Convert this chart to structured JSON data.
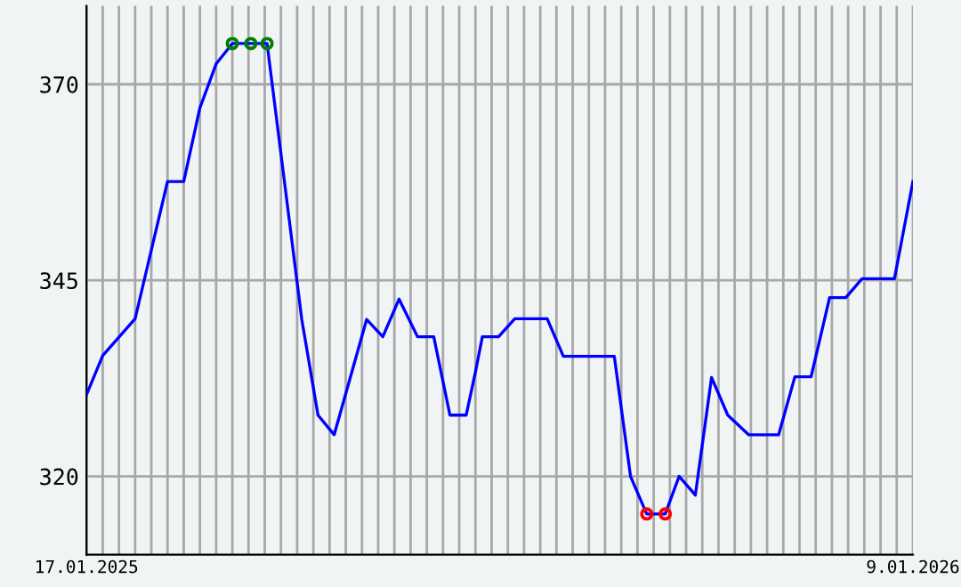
{
  "chart_data": {
    "type": "line",
    "x": [
      "2025-01-17",
      "2025-01-24",
      "2025-02-07",
      "2025-02-21",
      "2025-02-28",
      "2025-03-07",
      "2025-03-14",
      "2025-03-21",
      "2025-04-05",
      "2025-04-20",
      "2025-04-27",
      "2025-05-04",
      "2025-05-18",
      "2025-05-25",
      "2025-06-01",
      "2025-06-09",
      "2025-06-16",
      "2025-06-23",
      "2025-06-30",
      "2025-07-04",
      "2025-07-07",
      "2025-07-14",
      "2025-07-21",
      "2025-08-04",
      "2025-08-11",
      "2025-09-02",
      "2025-09-09",
      "2025-09-16",
      "2025-09-24",
      "2025-09-30",
      "2025-10-07",
      "2025-10-14",
      "2025-10-21",
      "2025-10-30",
      "2025-11-12",
      "2025-11-19",
      "2025-11-26",
      "2025-12-04",
      "2025-12-11",
      "2025-12-18",
      "2026-01-01",
      "2026-01-09"
    ],
    "series": [
      {
        "color": "#0000ff",
        "marker": "none",
        "values": [
          330.4,
          335.4,
          340.1,
          357.6,
          357.6,
          367.0,
          372.6,
          375.2,
          375.2,
          340.0,
          327.8,
          325.3,
          340.0,
          337.8,
          342.6,
          337.8,
          337.8,
          327.8,
          327.8,
          333.3,
          337.8,
          337.8,
          340.1,
          340.1,
          335.3,
          335.3,
          320.0,
          315.2,
          315.2,
          320.0,
          317.6,
          332.6,
          327.8,
          325.3,
          325.3,
          332.7,
          332.7,
          342.8,
          342.8,
          345.2,
          345.2,
          357.6
        ]
      },
      {
        "type": "scatter",
        "color": "#008000",
        "marker": "circle",
        "x": [
          "2025-03-21",
          "2025-03-29",
          "2025-04-05"
        ],
        "values": [
          375.2,
          375.2,
          375.2
        ]
      },
      {
        "type": "scatter",
        "color": "#ff0000",
        "marker": "circle",
        "x": [
          "2025-09-16",
          "2025-09-24"
        ],
        "values": [
          315.2,
          315.2
        ]
      }
    ],
    "xlim": [
      "2025-01-17",
      "2026-01-09"
    ],
    "xticks": [
      {
        "value": "2025-01-17",
        "label": "17.01.2025"
      },
      {
        "value": "2025-01-24",
        "label": null
      },
      {
        "value": "2025-01-31",
        "label": null
      },
      {
        "value": "2025-02-07",
        "label": null
      },
      {
        "value": "2025-02-14",
        "label": null
      },
      {
        "value": "2025-02-21",
        "label": null
      },
      {
        "value": "2025-02-28",
        "label": null
      },
      {
        "value": "2025-03-07",
        "label": null
      },
      {
        "value": "2025-03-14",
        "label": null
      },
      {
        "value": "2025-03-21",
        "label": null
      },
      {
        "value": "2025-03-28",
        "label": null
      },
      {
        "value": "2025-04-04",
        "label": null
      },
      {
        "value": "2025-04-11",
        "label": null
      },
      {
        "value": "2025-04-18",
        "label": null
      },
      {
        "value": "2025-04-25",
        "label": null
      },
      {
        "value": "2025-05-02",
        "label": null
      },
      {
        "value": "2025-05-09",
        "label": null
      },
      {
        "value": "2025-05-16",
        "label": null
      },
      {
        "value": "2025-05-23",
        "label": null
      },
      {
        "value": "2025-05-30",
        "label": null
      },
      {
        "value": "2025-06-06",
        "label": null
      },
      {
        "value": "2025-06-13",
        "label": null
      },
      {
        "value": "2025-06-20",
        "label": null
      },
      {
        "value": "2025-06-27",
        "label": null
      },
      {
        "value": "2025-07-04",
        "label": null
      },
      {
        "value": "2025-07-11",
        "label": null
      },
      {
        "value": "2025-07-18",
        "label": null
      },
      {
        "value": "2025-07-25",
        "label": null
      },
      {
        "value": "2025-08-01",
        "label": null
      },
      {
        "value": "2025-08-08",
        "label": null
      },
      {
        "value": "2025-08-15",
        "label": null
      },
      {
        "value": "2025-08-22",
        "label": null
      },
      {
        "value": "2025-08-29",
        "label": null
      },
      {
        "value": "2025-09-05",
        "label": null
      },
      {
        "value": "2025-09-12",
        "label": null
      },
      {
        "value": "2025-09-19",
        "label": null
      },
      {
        "value": "2025-09-26",
        "label": null
      },
      {
        "value": "2025-10-03",
        "label": null
      },
      {
        "value": "2025-10-10",
        "label": null
      },
      {
        "value": "2025-10-17",
        "label": null
      },
      {
        "value": "2025-10-24",
        "label": null
      },
      {
        "value": "2025-10-31",
        "label": null
      },
      {
        "value": "2025-11-07",
        "label": null
      },
      {
        "value": "2025-11-14",
        "label": null
      },
      {
        "value": "2025-11-21",
        "label": null
      },
      {
        "value": "2025-11-28",
        "label": null
      },
      {
        "value": "2025-12-05",
        "label": null
      },
      {
        "value": "2025-12-12",
        "label": null
      },
      {
        "value": "2025-12-19",
        "label": null
      },
      {
        "value": "2025-12-26",
        "label": null
      },
      {
        "value": "2026-01-02",
        "label": null
      },
      {
        "value": "2026-01-09",
        "label": "9.01.2026"
      }
    ],
    "ylim": [
      310,
      380
    ],
    "yticks": [
      320,
      345,
      370
    ],
    "grid": true,
    "legend": false
  }
}
